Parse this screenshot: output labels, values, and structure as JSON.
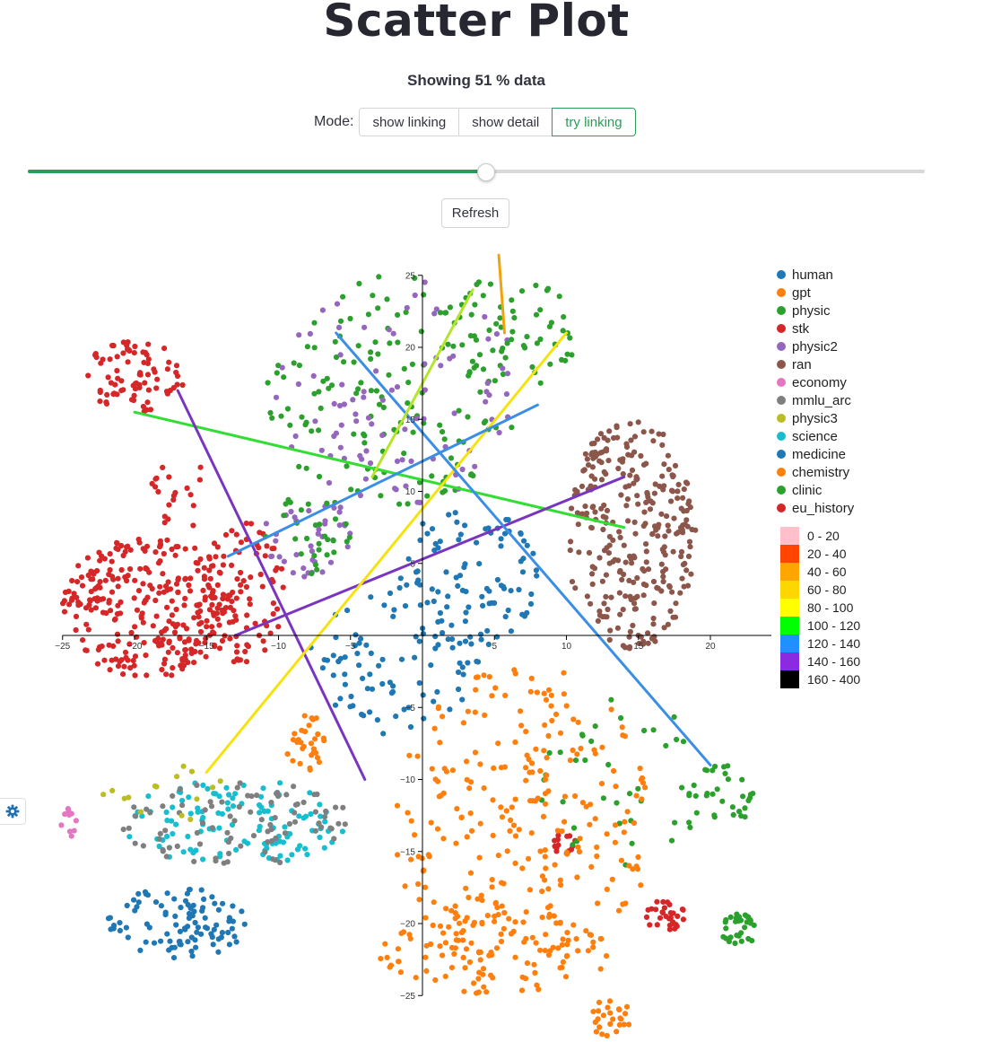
{
  "page": {
    "title": "Scatter Plot",
    "subtitle": "Showing 51 % data",
    "mode_label": "Mode:",
    "modes": [
      "show linking",
      "show detail",
      "try linking"
    ],
    "active_mode": "try linking",
    "slider_value_percent": 51,
    "refresh_label": "Refresh",
    "settings_icon": "gear-icon"
  },
  "chart_data": {
    "type": "scatter",
    "xlim": [
      -25,
      25
    ],
    "ylim": [
      -25,
      25
    ],
    "x_ticks": [
      -25,
      -20,
      -15,
      -10,
      -5,
      5,
      10,
      15,
      20
    ],
    "y_ticks": [
      25,
      20,
      15,
      10,
      5,
      -5,
      -10,
      -15,
      -20,
      -25
    ],
    "grid": false,
    "legend_position": "right",
    "categories": [
      {
        "name": "human",
        "color": "#1f77b4"
      },
      {
        "name": "gpt",
        "color": "#ff7f0e"
      },
      {
        "name": "physic",
        "color": "#2ca02c"
      },
      {
        "name": "stk",
        "color": "#d62728"
      },
      {
        "name": "physic2",
        "color": "#9467bd"
      },
      {
        "name": "ran",
        "color": "#8c564b"
      },
      {
        "name": "economy",
        "color": "#e377c2"
      },
      {
        "name": "mmlu_arc",
        "color": "#7f7f7f"
      },
      {
        "name": "physic3",
        "color": "#bcbd22"
      },
      {
        "name": "science",
        "color": "#17becf"
      },
      {
        "name": "medicine",
        "color": "#1f77b4"
      },
      {
        "name": "chemistry",
        "color": "#ff7f0e"
      },
      {
        "name": "clinic",
        "color": "#2ca02c"
      },
      {
        "name": "eu_history",
        "color": "#d62728"
      }
    ],
    "length_legend": [
      {
        "label": "0 - 20",
        "color": "#ffc0cb"
      },
      {
        "label": "20 - 40",
        "color": "#ff4500"
      },
      {
        "label": "40 - 60",
        "color": "#ffa500"
      },
      {
        "label": "60 - 80",
        "color": "#ffd700"
      },
      {
        "label": "80 - 100",
        "color": "#ffff00"
      },
      {
        "label": "100 - 120",
        "color": "#00ff00"
      },
      {
        "label": "120 - 140",
        "color": "#1e90ff"
      },
      {
        "label": "140 - 160",
        "color": "#8a2be2"
      },
      {
        "label": "160 - 400",
        "color": "#000000"
      }
    ],
    "clusters": [
      {
        "category": "stk",
        "cx": -19,
        "cy": 2,
        "rx": 6,
        "ry": 5,
        "n": 300
      },
      {
        "category": "stk",
        "cx": -12.5,
        "cy": 3,
        "rx": 3,
        "ry": 5,
        "n": 90
      },
      {
        "category": "stk",
        "cx": -20,
        "cy": 18,
        "rx": 3.5,
        "ry": 2.5,
        "n": 80
      },
      {
        "category": "stk",
        "cx": -17,
        "cy": 10,
        "rx": 2,
        "ry": 3,
        "n": 20
      },
      {
        "category": "stk",
        "cx": 10,
        "cy": -14.5,
        "rx": 1,
        "ry": 0.8,
        "n": 15
      },
      {
        "category": "eu_history",
        "cx": 17,
        "cy": -19.5,
        "rx": 1.5,
        "ry": 1.2,
        "n": 30
      },
      {
        "category": "ran",
        "cx": 14.5,
        "cy": 7,
        "rx": 4.5,
        "ry": 8,
        "n": 300
      },
      {
        "category": "physic",
        "cx": -2,
        "cy": 17,
        "rx": 9,
        "ry": 8,
        "n": 140
      },
      {
        "category": "physic2",
        "cx": -2,
        "cy": 17,
        "rx": 9,
        "ry": 8,
        "n": 90
      },
      {
        "category": "physic",
        "cx": 6,
        "cy": 21,
        "rx": 5,
        "ry": 4,
        "n": 60
      },
      {
        "category": "physic2",
        "cx": -8,
        "cy": 7,
        "rx": 3,
        "ry": 3,
        "n": 40
      },
      {
        "category": "physic",
        "cx": -8,
        "cy": 7,
        "rx": 3,
        "ry": 3,
        "n": 30
      },
      {
        "category": "clinic",
        "cx": 21,
        "cy": -11,
        "rx": 2.5,
        "ry": 2,
        "n": 30
      },
      {
        "category": "clinic",
        "cx": 22,
        "cy": -20.5,
        "rx": 1.2,
        "ry": 1.2,
        "n": 30
      },
      {
        "category": "clinic",
        "cx": 14,
        "cy": -10,
        "rx": 6,
        "ry": 6,
        "n": 40
      },
      {
        "category": "human",
        "cx": 3,
        "cy": 4,
        "rx": 5,
        "ry": 5,
        "n": 100
      },
      {
        "category": "medicine",
        "cx": -2,
        "cy": -2,
        "rx": 6,
        "ry": 5,
        "n": 80
      },
      {
        "category": "medicine",
        "cx": -17,
        "cy": -20,
        "rx": 5,
        "ry": 2.5,
        "n": 100
      },
      {
        "category": "science",
        "cx": -13,
        "cy": -13,
        "rx": 8,
        "ry": 3,
        "n": 120
      },
      {
        "category": "mmlu_arc",
        "cx": -13,
        "cy": -13,
        "rx": 8,
        "ry": 3,
        "n": 90
      },
      {
        "category": "physic3",
        "cx": -18,
        "cy": -11,
        "rx": 5,
        "ry": 2,
        "n": 15
      },
      {
        "category": "economy",
        "cx": -24.5,
        "cy": -13,
        "rx": 0.6,
        "ry": 1,
        "n": 10
      },
      {
        "category": "gpt",
        "cx": 7,
        "cy": -13,
        "rx": 9,
        "ry": 11,
        "n": 260
      },
      {
        "category": "chemistry",
        "cx": 5,
        "cy": -22,
        "rx": 8,
        "ry": 3,
        "n": 100
      },
      {
        "category": "chemistry",
        "cx": -8,
        "cy": -7.5,
        "rx": 1.5,
        "ry": 2,
        "n": 30
      },
      {
        "category": "gpt",
        "cx": 13,
        "cy": -26.5,
        "rx": 1.5,
        "ry": 1.5,
        "n": 25
      }
    ],
    "links": [
      {
        "from": [
          -20,
          15.5
        ],
        "to": [
          14,
          7.5
        ],
        "color": "#33dd33"
      },
      {
        "from": [
          -17,
          17
        ],
        "to": [
          -4,
          -10
        ],
        "color": "#7a35c0"
      },
      {
        "from": [
          -13,
          0
        ],
        "to": [
          14,
          11
        ],
        "color": "#7a35c0"
      },
      {
        "from": [
          -15,
          -9.5
        ],
        "to": [
          10,
          21
        ],
        "color": "#f5e20f"
      },
      {
        "from": [
          -13.5,
          5.5
        ],
        "to": [
          8,
          16
        ],
        "color": "#3a8ee6"
      },
      {
        "from": [
          -6,
          21
        ],
        "to": [
          20,
          -9
        ],
        "color": "#3a8ee6"
      },
      {
        "from": [
          -3.5,
          11
        ],
        "to": [
          3.5,
          24
        ],
        "color": "#b5e52a"
      },
      {
        "from": [
          5.3,
          26.4
        ],
        "to": [
          5.7,
          21
        ],
        "color": "#f2a20c"
      }
    ]
  }
}
